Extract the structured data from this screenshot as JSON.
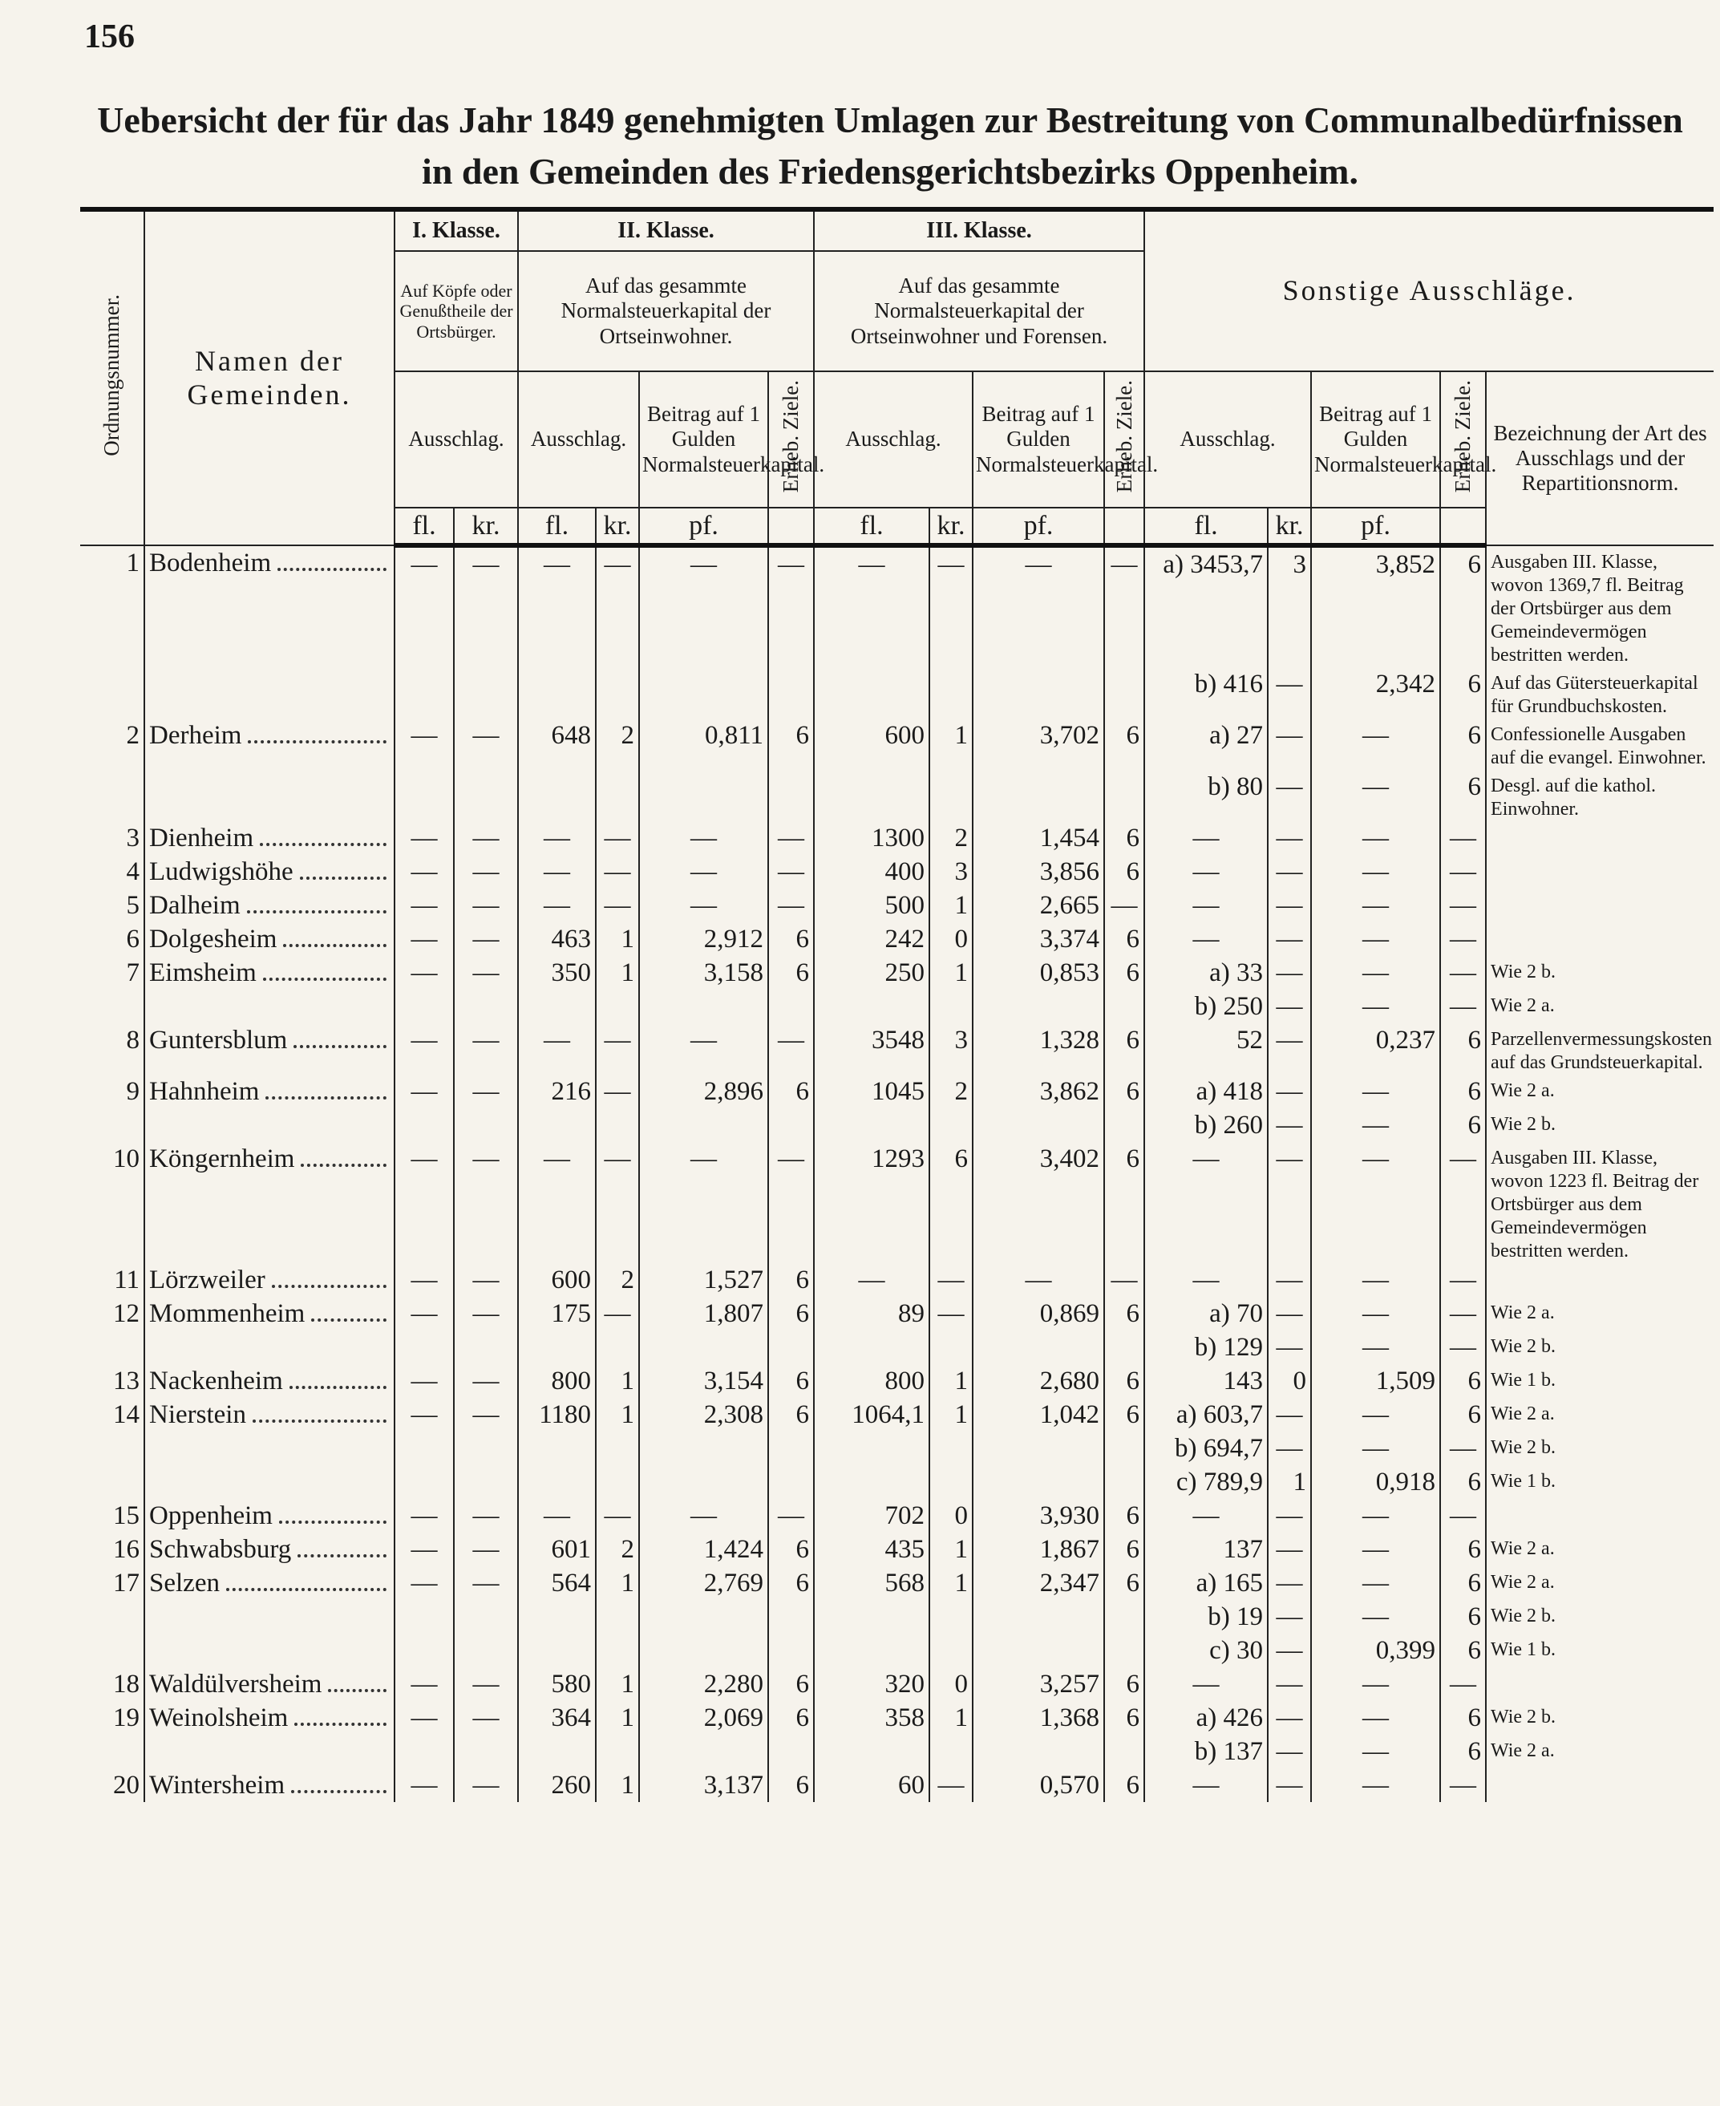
{
  "header": {
    "page_number": "156",
    "title": [
      "Uebersicht der für das Jahr 1849 genehmigten Umlagen zur Bestreitung von Communalbedürfnissen",
      "in den Gemeinden des Friedensgerichtsbezirks Oppenheim."
    ]
  },
  "table": {
    "head": {
      "number": "Ordnungsnummer.",
      "name": "Namen der Gemeinden.",
      "class1": {
        "title": "I. Klasse.",
        "basis": "Auf Köpfe oder Genußtheile der Ortsbürger.",
        "levy": "Ausschlag."
      },
      "class2": {
        "title": "II. Klasse.",
        "basis": "Auf das gesammte Normalsteuerkapital der Ortseinwohner.",
        "levy": "Ausschlag.",
        "rate": "Beitrag auf 1 Gulden Normalsteuerkapital.",
        "terms": "Erheb. Ziele."
      },
      "class3": {
        "title": "III. Klasse.",
        "basis": "Auf das gesammte Normalsteuerkapital der Ortseinwohner und Forensen.",
        "levy": "Ausschlag.",
        "rate": "Beitrag auf 1 Gulden Normalsteuerkapital.",
        "terms": "Erheb. Ziele."
      },
      "other": {
        "title": "Sonstige Ausschläge.",
        "levy": "Ausschlag.",
        "rate": "Beitrag auf 1 Gulden Normalsteuerkapital.",
        "terms": "Erheb. Ziele.",
        "description": "Bezeichnung der Art des Ausschlags und der Repartitionsnorm."
      }
    },
    "units": [
      "fl.",
      "kr.",
      "fl.",
      "kr.",
      "pf.",
      "fl.",
      "kr.",
      "pf.",
      "fl.",
      "kr.",
      "pf."
    ],
    "rows": [
      [
        "1",
        "Bodenheim",
        "—",
        "—",
        "—",
        "—",
        "—",
        "—",
        "—",
        "—",
        "—",
        "—",
        "a) 3453,7",
        "3",
        "3,852",
        "6",
        "Ausgaben III. Klasse, wovon 1369,7 fl. Beitrag der Ortsbürger aus dem Gemeindevermögen bestritten werden."
      ],
      [
        null,
        null,
        null,
        null,
        null,
        null,
        null,
        null,
        null,
        null,
        null,
        null,
        "b) 416",
        "—",
        "2,342",
        "6",
        "Auf das Gütersteuerkapital für Grundbuchskosten."
      ],
      [
        "2",
        "Derheim",
        "—",
        "—",
        "648",
        "2",
        "0,811",
        "6",
        "600",
        "1",
        "3,702",
        "6",
        "a) 27",
        "—",
        "—",
        "6",
        "Confessionelle Ausgaben auf die evangel. Einwohner."
      ],
      [
        null,
        null,
        null,
        null,
        null,
        null,
        null,
        null,
        null,
        null,
        null,
        null,
        "b) 80",
        "—",
        "—",
        "6",
        "Desgl. auf die kathol. Einwohner."
      ],
      [
        "3",
        "Dienheim",
        "—",
        "—",
        "—",
        "—",
        "—",
        "—",
        "1300",
        "2",
        "1,454",
        "6",
        "—",
        "—",
        "—",
        "—",
        null
      ],
      [
        "4",
        "Ludwigshöhe",
        "—",
        "—",
        "—",
        "—",
        "—",
        "—",
        "400",
        "3",
        "3,856",
        "6",
        "—",
        "—",
        "—",
        "—",
        null
      ],
      [
        "5",
        "Dalheim",
        "—",
        "—",
        "—",
        "—",
        "—",
        "—",
        "500",
        "1",
        "2,665",
        "—",
        "—",
        "—",
        "—",
        "—",
        null
      ],
      [
        "6",
        "Dolgesheim",
        "—",
        "—",
        "463",
        "1",
        "2,912",
        "6",
        "242",
        "0",
        "3,374",
        "6",
        "—",
        "—",
        "—",
        "—",
        null
      ],
      [
        "7",
        "Eimsheim",
        "—",
        "—",
        "350",
        "1",
        "3,158",
        "6",
        "250",
        "1",
        "0,853",
        "6",
        "a) 33",
        "—",
        "—",
        "—",
        "Wie 2 b."
      ],
      [
        null,
        null,
        null,
        null,
        null,
        null,
        null,
        null,
        null,
        null,
        null,
        null,
        "b) 250",
        "—",
        "—",
        "—",
        "Wie 2 a."
      ],
      [
        "8",
        "Guntersblum",
        "—",
        "—",
        "—",
        "—",
        "—",
        "—",
        "3548",
        "3",
        "1,328",
        "6",
        "52",
        "—",
        "0,237",
        "6",
        "Parzellenvermessungskosten auf das Grundsteuerkapital."
      ],
      [
        "9",
        "Hahnheim",
        "—",
        "—",
        "216",
        "—",
        "2,896",
        "6",
        "1045",
        "2",
        "3,862",
        "6",
        "a) 418",
        "—",
        "—",
        "6",
        "Wie 2 a."
      ],
      [
        null,
        null,
        null,
        null,
        null,
        null,
        null,
        null,
        null,
        null,
        null,
        null,
        "b) 260",
        "—",
        "—",
        "6",
        "Wie 2 b."
      ],
      [
        "10",
        "Köngernheim",
        "—",
        "—",
        "—",
        "—",
        "—",
        "—",
        "1293",
        "6",
        "3,402",
        "6",
        "—",
        "—",
        "—",
        "—",
        "Ausgaben III. Klasse, wovon 1223 fl. Beitrag der Ortsbürger aus dem Gemeindevermögen bestritten werden."
      ],
      [
        "11",
        "Lörzweiler",
        "—",
        "—",
        "600",
        "2",
        "1,527",
        "6",
        "—",
        "—",
        "—",
        "—",
        "—",
        "—",
        "—",
        "—",
        null
      ],
      [
        "12",
        "Mommenheim",
        "—",
        "—",
        "175",
        "—",
        "1,807",
        "6",
        "89",
        "—",
        "0,869",
        "6",
        "a) 70",
        "—",
        "—",
        "—",
        "Wie 2 a."
      ],
      [
        null,
        null,
        null,
        null,
        null,
        null,
        null,
        null,
        null,
        null,
        null,
        null,
        "b) 129",
        "—",
        "—",
        "—",
        "Wie 2 b."
      ],
      [
        "13",
        "Nackenheim",
        "—",
        "—",
        "800",
        "1",
        "3,154",
        "6",
        "800",
        "1",
        "2,680",
        "6",
        "143",
        "0",
        "1,509",
        "6",
        "Wie 1 b."
      ],
      [
        "14",
        "Nierstein",
        "—",
        "—",
        "1180",
        "1",
        "2,308",
        "6",
        "1064,1",
        "1",
        "1,042",
        "6",
        "a) 603,7",
        "—",
        "—",
        "6",
        "Wie 2 a."
      ],
      [
        null,
        null,
        null,
        null,
        null,
        null,
        null,
        null,
        null,
        null,
        null,
        null,
        "b) 694,7",
        "—",
        "—",
        "—",
        "Wie 2 b."
      ],
      [
        null,
        null,
        null,
        null,
        null,
        null,
        null,
        null,
        null,
        null,
        null,
        null,
        "c) 789,9",
        "1",
        "0,918",
        "6",
        "Wie 1 b."
      ],
      [
        "15",
        "Oppenheim",
        "—",
        "—",
        "—",
        "—",
        "—",
        "—",
        "702",
        "0",
        "3,930",
        "6",
        "—",
        "—",
        "—",
        "—",
        null
      ],
      [
        "16",
        "Schwabsburg",
        "—",
        "—",
        "601",
        "2",
        "1,424",
        "6",
        "435",
        "1",
        "1,867",
        "6",
        "137",
        "—",
        "—",
        "6",
        "Wie 2 a."
      ],
      [
        "17",
        "Selzen",
        "—",
        "—",
        "564",
        "1",
        "2,769",
        "6",
        "568",
        "1",
        "2,347",
        "6",
        "a) 165",
        "—",
        "—",
        "6",
        "Wie 2 a."
      ],
      [
        null,
        null,
        null,
        null,
        null,
        null,
        null,
        null,
        null,
        null,
        null,
        null,
        "b) 19",
        "—",
        "—",
        "6",
        "Wie 2 b."
      ],
      [
        null,
        null,
        null,
        null,
        null,
        null,
        null,
        null,
        null,
        null,
        null,
        null,
        "c) 30",
        "—",
        "0,399",
        "6",
        "Wie 1 b."
      ],
      [
        "18",
        "Waldülversheim",
        "—",
        "—",
        "580",
        "1",
        "2,280",
        "6",
        "320",
        "0",
        "3,257",
        "6",
        "—",
        "—",
        "—",
        "—",
        null
      ],
      [
        "19",
        "Weinolsheim",
        "—",
        "—",
        "364",
        "1",
        "2,069",
        "6",
        "358",
        "1",
        "1,368",
        "6",
        "a) 426",
        "—",
        "—",
        "6",
        "Wie 2 b."
      ],
      [
        null,
        null,
        null,
        null,
        null,
        null,
        null,
        null,
        null,
        null,
        null,
        null,
        "b) 137",
        "—",
        "—",
        "6",
        "Wie 2 a."
      ],
      [
        "20",
        "Wintersheim",
        "—",
        "—",
        "260",
        "1",
        "3,137",
        "6",
        "60",
        "—",
        "0,570",
        "6",
        "—",
        "—",
        "—",
        "—",
        null
      ]
    ]
  }
}
